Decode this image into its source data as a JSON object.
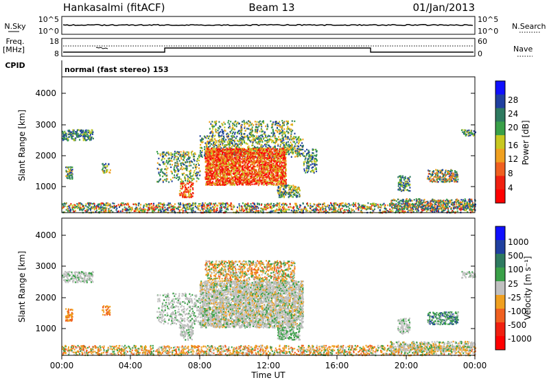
{
  "header": {
    "station": "Hankasalmi (fitACF)",
    "beam": "Beam 13",
    "date": "01/Jan/2013"
  },
  "strips": {
    "nsky_label": "N.Sky",
    "nsky_ticks": [
      "10^5",
      "10^0"
    ],
    "nsearch_label": "N.Search",
    "nsearch_ticks": [
      "10^5",
      "10^0"
    ],
    "freq_label_1": "Freq.",
    "freq_label_2": "[MHz]",
    "freq_ticks": [
      "18",
      "8"
    ],
    "nave_label": "Nave",
    "nave_ticks": [
      "60",
      "0"
    ],
    "cpid_label": "CPID",
    "cpid_text": "normal (fast stereo) 153"
  },
  "chart_data": [
    {
      "type": "heatmap",
      "name": "power",
      "ylabel": "Slant Range [km]",
      "yticks": [
        "4000",
        "3000",
        "2000",
        "1000"
      ],
      "ylim": [
        180,
        4600
      ],
      "xlim": [
        0,
        24
      ],
      "colorbar_label": "Power [dB]",
      "colorbar_ticks": [
        "28",
        "24",
        "20",
        "16",
        "12",
        "8",
        "4"
      ],
      "colors": [
        "#1010ff",
        "#2040a0",
        "#2e7a60",
        "#3aa048",
        "#c8c820",
        "#f0a020",
        "#f06020",
        "#f02010",
        "#ff0000"
      ]
    },
    {
      "type": "heatmap",
      "name": "velocity",
      "ylabel": "Slant Range [km]",
      "yticks": [
        "4000",
        "3000",
        "2000",
        "1000"
      ],
      "ylim": [
        180,
        4600
      ],
      "xlim": [
        0,
        24
      ],
      "colorbar_label": "Velocity [m s⁻¹]",
      "colorbar_ticks": [
        "1000",
        "500",
        "100",
        "25",
        "-25",
        "-100",
        "-500",
        "-1000"
      ],
      "colors": [
        "#1010ff",
        "#2040a0",
        "#2e7a60",
        "#3aa048",
        "#c0c0c0",
        "#f0a020",
        "#f06020",
        "#f02010",
        "#ff0000"
      ]
    }
  ],
  "xaxis": {
    "label": "Time UT",
    "ticks": [
      "00:00",
      "04:00",
      "08:00",
      "12:00",
      "16:00",
      "20:00",
      "00:00"
    ]
  }
}
